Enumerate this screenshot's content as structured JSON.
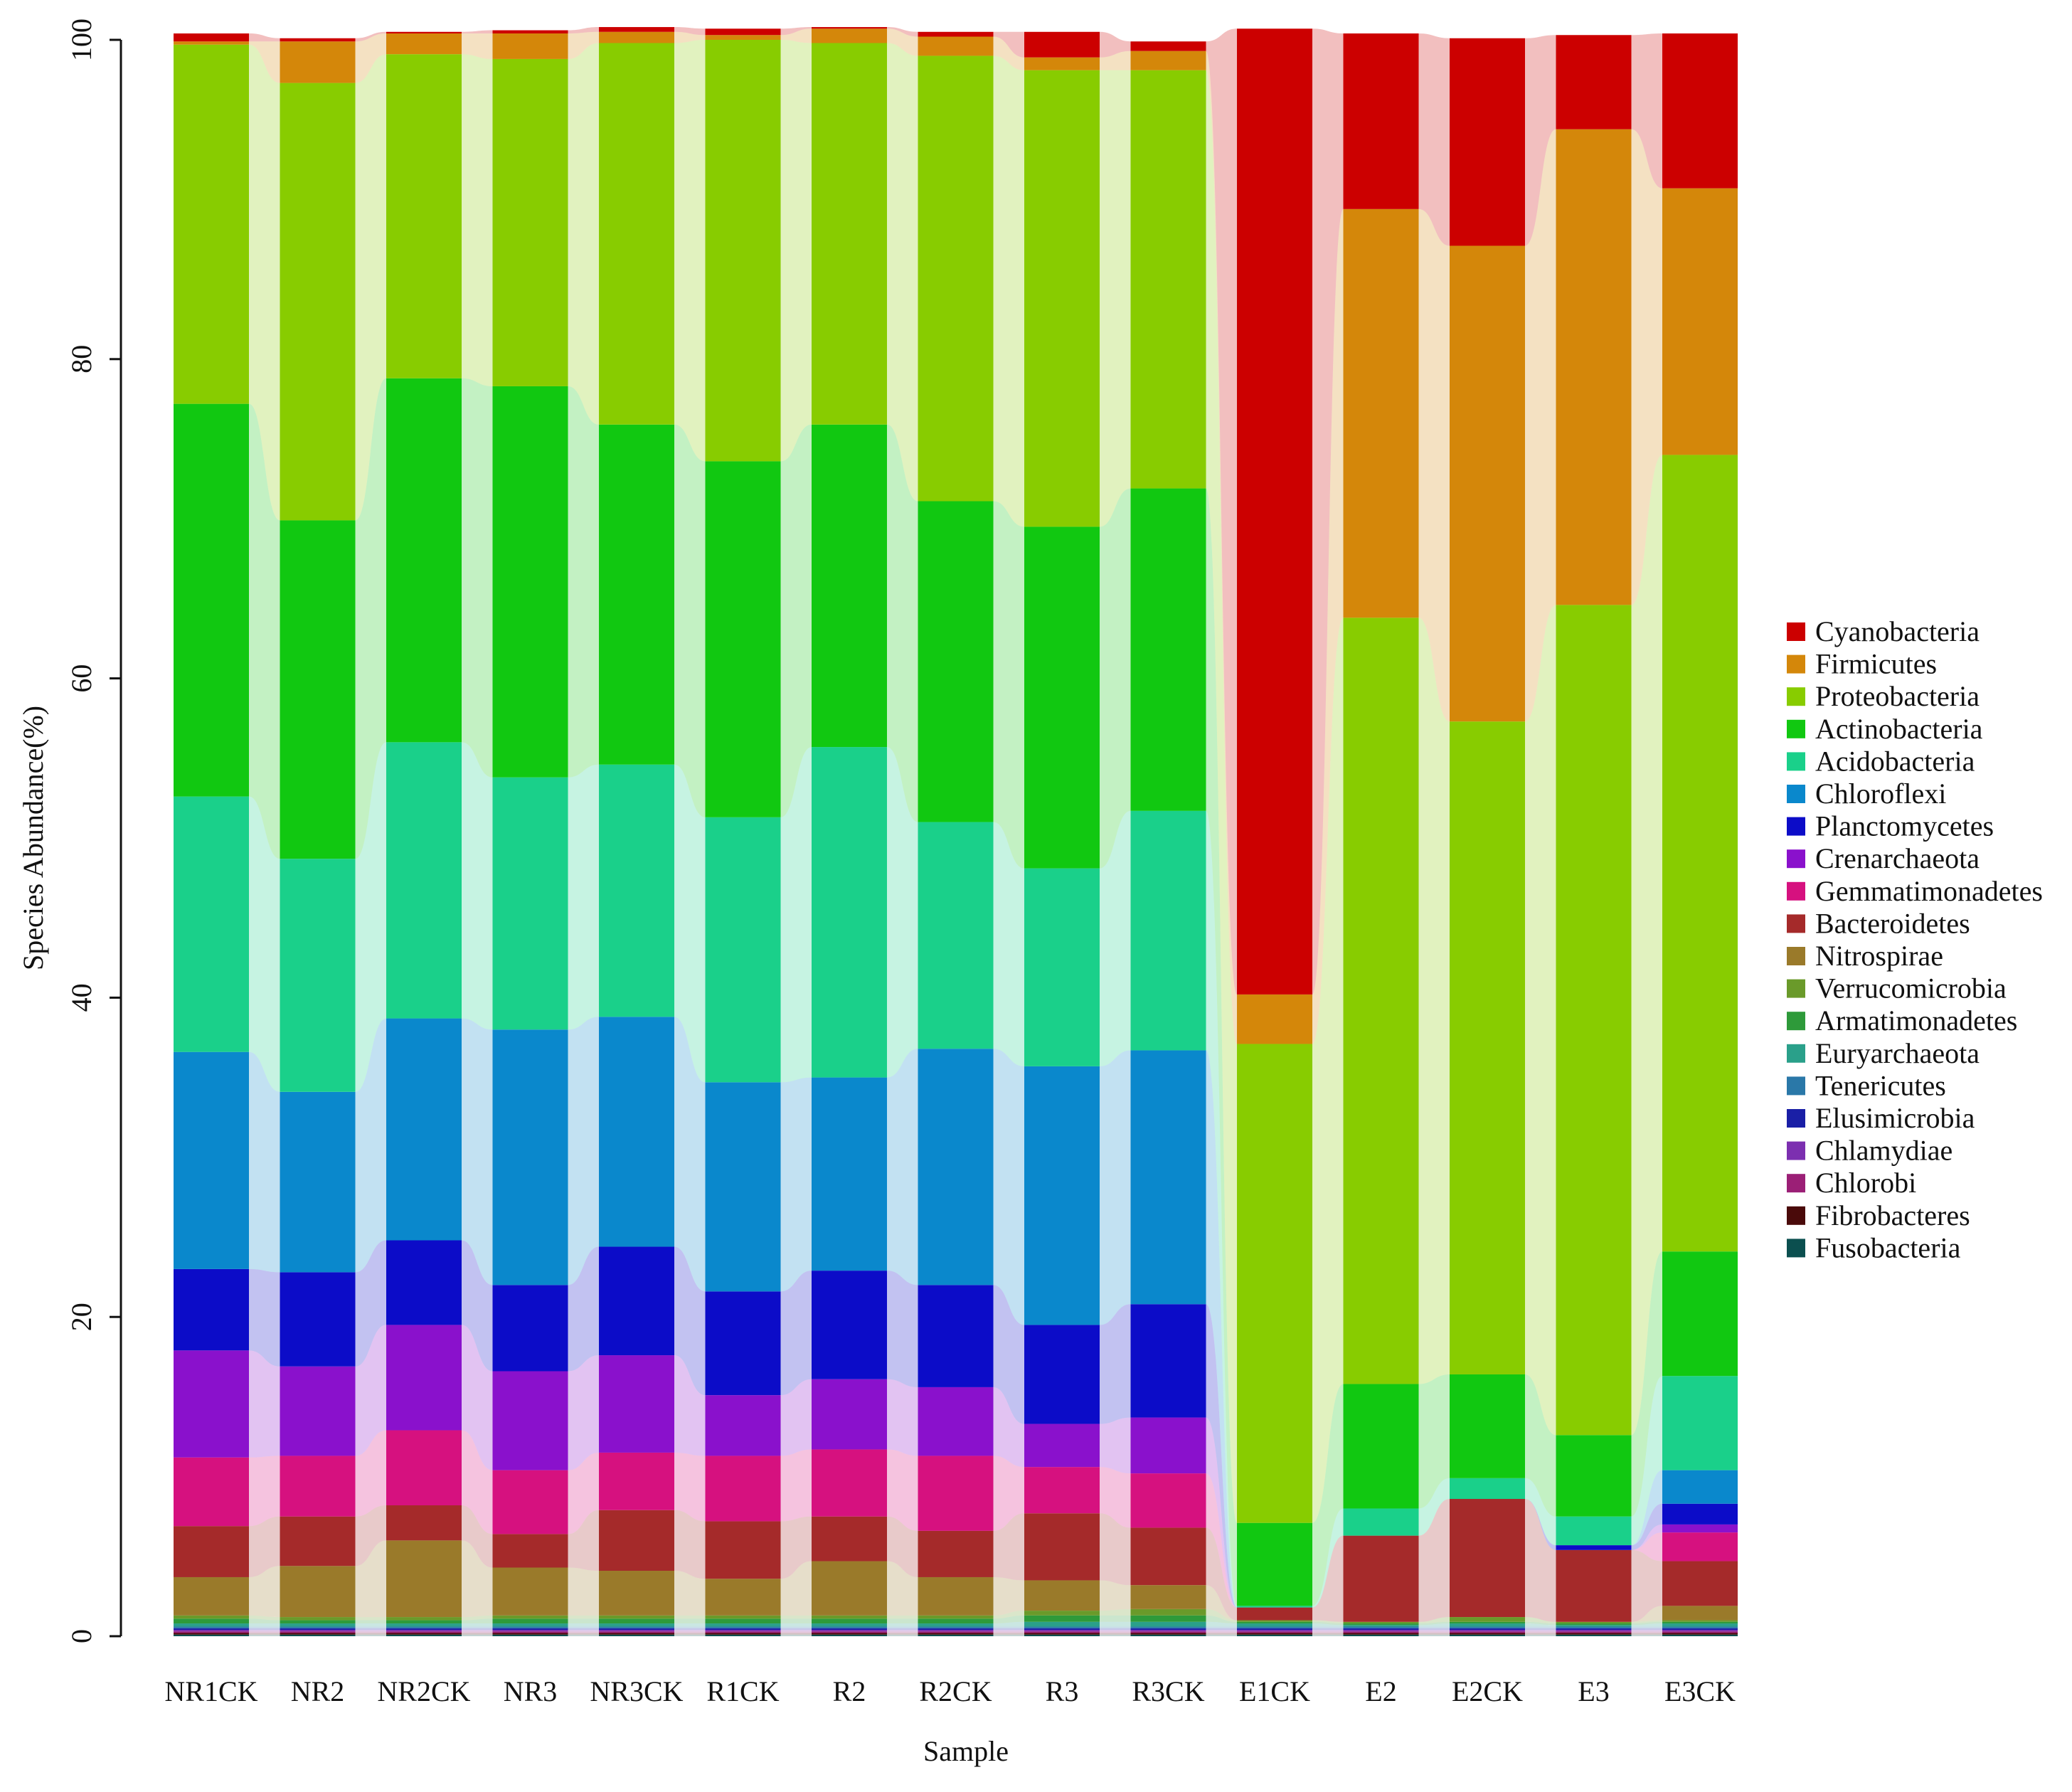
{
  "chart_data": {
    "type": "bar",
    "stacked": true,
    "title": "",
    "xlabel": "Sample",
    "ylabel": "Species Abundance(%)",
    "ylim": [
      0,
      100
    ],
    "yticks": [
      0,
      20,
      40,
      60,
      80,
      100
    ],
    "grid": false,
    "legend_position": "right",
    "categories": [
      "NR1CK",
      "NR2",
      "NR2CK",
      "NR3",
      "NR3CK",
      "R1CK",
      "R2",
      "R2CK",
      "R3",
      "R3CK",
      "E1CK",
      "E2",
      "E2CK",
      "E3",
      "E3CK"
    ],
    "series": [
      {
        "name": "Fusobacteria",
        "color": "#0b4f4f",
        "values": [
          0.1,
          0.1,
          0.1,
          0.1,
          0.1,
          0.1,
          0.1,
          0.1,
          0.1,
          0.1,
          0.1,
          0.1,
          0.1,
          0.1,
          0.1
        ]
      },
      {
        "name": "Fibrobacteres",
        "color": "#4a0a0a",
        "values": [
          0.1,
          0.1,
          0.1,
          0.1,
          0.1,
          0.1,
          0.1,
          0.1,
          0.1,
          0.1,
          0.1,
          0.1,
          0.1,
          0.1,
          0.1
        ]
      },
      {
        "name": "Chlorobi",
        "color": "#9b1f76",
        "values": [
          0.1,
          0.1,
          0.1,
          0.1,
          0.1,
          0.1,
          0.1,
          0.1,
          0.1,
          0.1,
          0.1,
          0.1,
          0.1,
          0.1,
          0.1
        ]
      },
      {
        "name": "Chlamydiae",
        "color": "#7c2fb0",
        "values": [
          0.1,
          0.1,
          0.1,
          0.1,
          0.1,
          0.1,
          0.1,
          0.1,
          0.1,
          0.1,
          0.1,
          0.1,
          0.1,
          0.1,
          0.1
        ]
      },
      {
        "name": "Elusimicrobia",
        "color": "#1a1fa6",
        "values": [
          0.1,
          0.1,
          0.1,
          0.1,
          0.1,
          0.1,
          0.1,
          0.1,
          0.1,
          0.1,
          0.1,
          0.1,
          0.1,
          0.1,
          0.1
        ]
      },
      {
        "name": "Tenericutes",
        "color": "#2a78a8",
        "values": [
          0.1,
          0.1,
          0.1,
          0.1,
          0.1,
          0.1,
          0.1,
          0.1,
          0.1,
          0.1,
          0.1,
          0.1,
          0.1,
          0.1,
          0.1
        ]
      },
      {
        "name": "Euryarchaeota",
        "color": "#2aa08a",
        "values": [
          0.2,
          0.2,
          0.2,
          0.2,
          0.2,
          0.2,
          0.2,
          0.2,
          0.3,
          0.3,
          0.2,
          0.1,
          0.2,
          0.1,
          0.2
        ]
      },
      {
        "name": "Armatimonadetes",
        "color": "#2e9a3a",
        "values": [
          0.3,
          0.2,
          0.2,
          0.3,
          0.3,
          0.3,
          0.3,
          0.3,
          0.4,
          0.4,
          0.1,
          0.1,
          0.1,
          0.1,
          0.1
        ]
      },
      {
        "name": "Verrucomicrobia",
        "color": "#6a9a2a",
        "values": [
          0.2,
          0.2,
          0.2,
          0.2,
          0.2,
          0.2,
          0.2,
          0.2,
          0.3,
          0.4,
          0.1,
          0.1,
          0.3,
          0.1,
          0.1
        ]
      },
      {
        "name": "Nitrospirae",
        "color": "#9a7a2a",
        "values": [
          2.4,
          3.2,
          4.8,
          3.0,
          2.8,
          2.3,
          3.4,
          2.4,
          1.9,
          1.5,
          0.0,
          0.0,
          0.0,
          0.0,
          0.9
        ]
      },
      {
        "name": "Bacteroidetes",
        "color": "#a52a2a",
        "values": [
          3.2,
          3.1,
          2.2,
          2.1,
          3.8,
          3.6,
          2.8,
          2.9,
          4.2,
          3.6,
          0.8,
          5.4,
          7.4,
          4.5,
          2.8
        ]
      },
      {
        "name": "Gemmatimonadetes",
        "color": "#d6117f",
        "values": [
          4.3,
          3.8,
          4.7,
          4.0,
          3.6,
          4.1,
          4.2,
          4.7,
          2.9,
          3.4,
          0.0,
          0.0,
          0.0,
          0.0,
          1.8
        ]
      },
      {
        "name": "Crenarchaeota",
        "color": "#8a11cc",
        "values": [
          6.7,
          5.6,
          6.6,
          6.2,
          6.1,
          3.8,
          4.4,
          4.3,
          2.7,
          3.5,
          0.0,
          0.0,
          0.0,
          0.0,
          0.5
        ]
      },
      {
        "name": "Planctomycetes",
        "color": "#0c0cc8",
        "values": [
          5.1,
          5.9,
          5.3,
          5.4,
          6.8,
          6.5,
          6.8,
          6.4,
          6.2,
          7.1,
          0.0,
          0.0,
          0.0,
          0.3,
          1.3
        ]
      },
      {
        "name": "Chloroflexi",
        "color": "#0a88cc",
        "values": [
          13.6,
          11.3,
          13.9,
          16.0,
          14.4,
          13.1,
          12.1,
          14.8,
          16.2,
          15.9,
          0.0,
          0.0,
          0.0,
          0.0,
          2.1
        ]
      },
      {
        "name": "Acidobacteria",
        "color": "#1ad08a",
        "values": [
          16.0,
          14.6,
          17.3,
          15.8,
          15.8,
          16.6,
          20.7,
          14.2,
          12.4,
          15.0,
          0.1,
          1.7,
          1.3,
          1.8,
          5.9
        ]
      },
      {
        "name": "Actinobacteria",
        "color": "#11c811",
        "values": [
          24.6,
          21.2,
          22.8,
          24.5,
          21.3,
          22.3,
          20.2,
          20.1,
          21.4,
          20.2,
          5.2,
          7.8,
          6.5,
          5.1,
          7.8
        ]
      },
      {
        "name": "Proteobacteria",
        "color": "#88cc00",
        "values": [
          22.5,
          27.4,
          20.3,
          20.5,
          23.9,
          26.4,
          23.9,
          27.9,
          28.6,
          26.2,
          30.0,
          48.0,
          40.9,
          52.0,
          49.9
        ]
      },
      {
        "name": "Firmicutes",
        "color": "#d4870a",
        "values": [
          0.2,
          2.6,
          1.3,
          1.6,
          0.7,
          0.3,
          0.9,
          1.2,
          0.8,
          1.2,
          3.1,
          25.6,
          29.8,
          29.8,
          16.7
        ]
      },
      {
        "name": "Cyanobacteria",
        "color": "#cc0000",
        "values": [
          0.5,
          0.2,
          0.1,
          0.2,
          0.3,
          0.4,
          0.1,
          0.3,
          1.6,
          0.6,
          60.5,
          11.0,
          13.0,
          5.9,
          9.7
        ]
      }
    ],
    "legend_order": [
      "Cyanobacteria",
      "Firmicutes",
      "Proteobacteria",
      "Actinobacteria",
      "Acidobacteria",
      "Chloroflexi",
      "Planctomycetes",
      "Crenarchaeota",
      "Gemmatimonadetes",
      "Bacteroidetes",
      "Nitrospirae",
      "Verrucomicrobia",
      "Armatimonadetes",
      "Euryarchaeota",
      "Tenericutes",
      "Elusimicrobia",
      "Chlamydiae",
      "Chlorobi",
      "Fibrobacteres",
      "Fusobacteria"
    ]
  }
}
